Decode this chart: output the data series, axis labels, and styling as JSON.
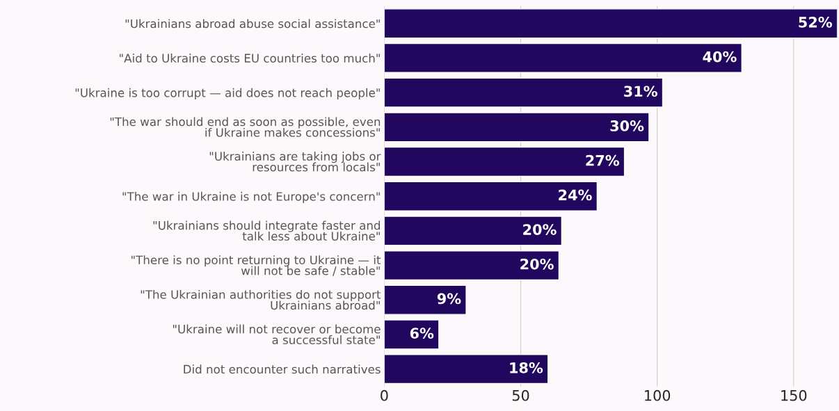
{
  "chart_data": {
    "type": "bar",
    "orientation": "horizontal",
    "categories": [
      "\"Ukrainians abroad abuse social assistance\"",
      "\"Aid to Ukraine costs EU countries too much\"",
      "\"Ukraine is too corrupt — aid does not reach people\"",
      "\"The war should end as soon as possible, even if Ukraine makes concessions\"",
      "\"Ukrainians are taking jobs or resources from locals\"",
      "\"The war in Ukraine is not Europe's concern\"",
      "\"Ukrainians should integrate faster and talk less about Ukraine\"",
      "\"There is no point returning to Ukraine — it will not be safe / stable\"",
      "\"The Ukrainian authorities do not support Ukrainians abroad\"",
      "\"Ukraine will not recover or become a successful state\"",
      "Did not encounter such narratives"
    ],
    "values": [
      166,
      131,
      102,
      97,
      88,
      78,
      65,
      64,
      30,
      20,
      60
    ],
    "annotations": [
      {
        "text": "52%",
        "x": 166,
        "y": "\"Ukrainians abroad abuse social assistance\""
      },
      {
        "text": "40%",
        "x": 131,
        "y": "\"Aid to Ukraine costs EU countries too much\""
      },
      {
        "text": "31%",
        "x": 102,
        "y": "\"Ukraine is too corrupt — aid does not reach people\""
      },
      {
        "text": "30%",
        "x": 97,
        "y": "\"The war should end as soon as possible, even if Ukraine makes concessions\""
      },
      {
        "text": "27%",
        "x": 88,
        "y": "\"Ukrainians are taking jobs or resources from locals\""
      },
      {
        "text": "24%",
        "x": 78,
        "y": "\"The war in Ukraine is not Europe's concern\""
      },
      {
        "text": "20%",
        "x": 65,
        "y": "\"Ukrainians should integrate faster and talk less about Ukraine\""
      },
      {
        "text": "20%",
        "x": 64,
        "y": "\"There is no point returning to Ukraine — it will not be safe / stable\""
      },
      {
        "text": "9%",
        "x": 30,
        "y": "\"The Ukrainian authorities do not support Ukrainians abroad\""
      },
      {
        "text": "6%",
        "x": 20,
        "y": "\"Ukraine will not recover or become a successful state\""
      },
      {
        "text": "18%",
        "x": 60,
        "y": "Did not encounter such narratives"
      }
    ],
    "color": "#22075e",
    "xlim": [
      0,
      166
    ],
    "xticks": [
      0,
      50,
      100,
      150
    ],
    "grid": "x"
  }
}
